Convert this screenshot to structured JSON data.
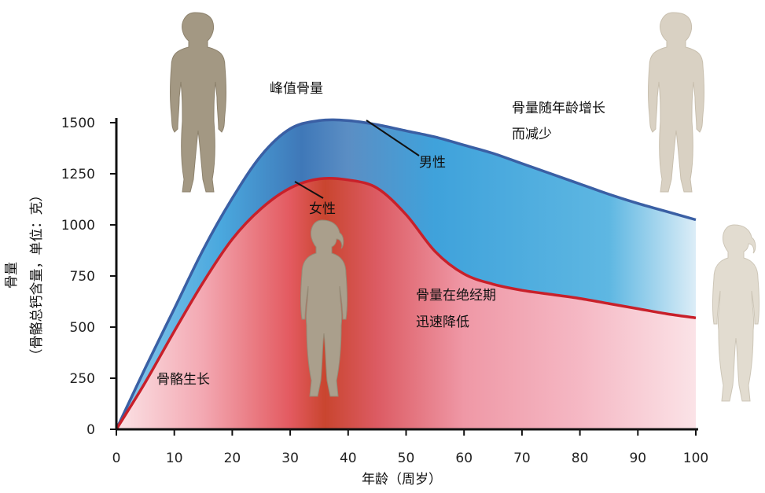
{
  "chart_data": {
    "type": "area",
    "xlabel": "年龄（周岁）",
    "ylabel": "骨量",
    "ylabel_sub": "（骨骼总钙含量，单位：克）",
    "xlim": [
      0,
      100
    ],
    "ylim": [
      0,
      1500
    ],
    "x_ticks": [
      0,
      10,
      20,
      30,
      40,
      50,
      60,
      70,
      80,
      90,
      100
    ],
    "y_ticks": [
      0,
      250,
      500,
      750,
      1000,
      1250,
      1500
    ],
    "grid": false,
    "series": [
      {
        "name": "男性",
        "color": "#3a63a6",
        "fill_color": "#4fa3d8",
        "x": [
          0,
          5,
          10,
          15,
          20,
          25,
          30,
          35,
          40,
          45,
          50,
          55,
          60,
          65,
          70,
          75,
          80,
          85,
          90,
          95,
          100
        ],
        "y": [
          0,
          300,
          590,
          880,
          1130,
          1340,
          1470,
          1510,
          1510,
          1490,
          1460,
          1430,
          1390,
          1350,
          1300,
          1250,
          1200,
          1150,
          1105,
          1065,
          1025
        ]
      },
      {
        "name": "女性",
        "color": "#c8202a",
        "fill_color": "#e2546a",
        "x": [
          0,
          5,
          10,
          15,
          20,
          25,
          30,
          35,
          40,
          45,
          50,
          55,
          60,
          65,
          70,
          75,
          80,
          85,
          90,
          95,
          100
        ],
        "y": [
          0,
          230,
          480,
          720,
          930,
          1080,
          1180,
          1225,
          1220,
          1180,
          1050,
          870,
          760,
          710,
          680,
          660,
          640,
          615,
          590,
          565,
          545
        ]
      }
    ],
    "annotations": {
      "peak": "峰值骨量",
      "decline": [
        "骨量随年龄增长",
        "而减少"
      ],
      "menopause": [
        "骨量在绝经期",
        "迅速降低"
      ],
      "growth": "骨骼生长",
      "male_label": "男性",
      "female_label": "女性"
    }
  }
}
